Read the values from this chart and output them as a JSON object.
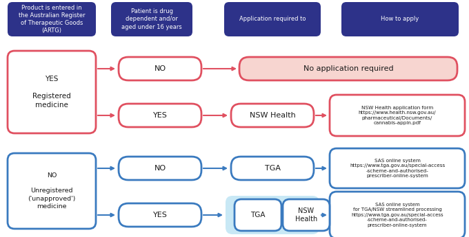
{
  "bg_color": "#ffffff",
  "dark_blue": "#2d3289",
  "red_edge": "#e05060",
  "light_red_fill": "#f7d5d0",
  "blue_edge": "#3a7abf",
  "light_blue_bg": "#c8e8f5",
  "white": "#ffffff",
  "text_dark": "#1a1a1a",
  "text_white": "#ffffff",
  "headers": [
    "Product is entered in\nthe Australian Register\nof Therapeutic Goods\n(ARTG)",
    "Patient is drug\ndependent and/or\naged under 16 years",
    "Application required to",
    "How to apply"
  ],
  "fig_w": 6.8,
  "fig_h": 3.45,
  "dpi": 100
}
